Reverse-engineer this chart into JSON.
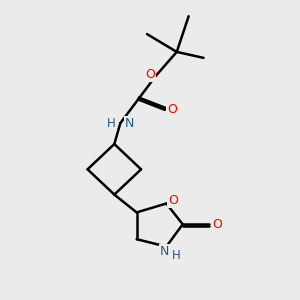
{
  "bg_color": "#ebebeb",
  "bond_color": "#000000",
  "o_color": "#ff0000",
  "n_color": "#1a5c8a",
  "line_width": 1.8,
  "figsize": [
    3.0,
    3.0
  ],
  "dpi": 100,
  "xlim": [
    0,
    10
  ],
  "ylim": [
    0,
    10
  ]
}
